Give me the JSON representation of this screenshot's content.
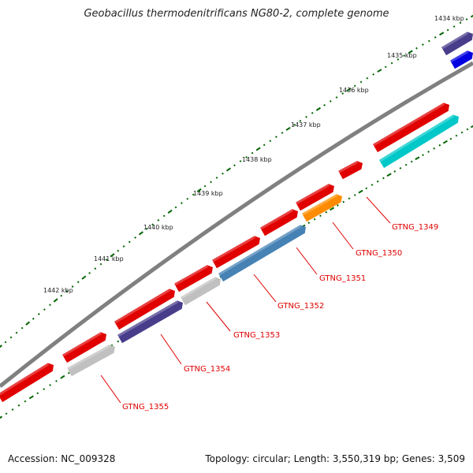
{
  "title": "Geobacillus thermodenitrificans NG80-2, complete genome",
  "footer": {
    "accession": "Accession: NC_009328",
    "summary": "Topology: circular; Length: 3,550,319 bp; Genes: 3,509"
  },
  "scale": {
    "unit": "kbp",
    "ticks": [
      "1434 kbp",
      "1435 kbp",
      "1436 kbp",
      "1437 kbp",
      "1438 kbp",
      "1439 kbp",
      "1440 kbp",
      "1441 kbp",
      "1442 kbp"
    ]
  },
  "genes": [
    {
      "name": "GTNG_1349",
      "color": "#e00000"
    },
    {
      "name": "GTNG_1350",
      "color": "#ff8c00"
    },
    {
      "name": "GTNG_1351",
      "color": "#e00000"
    },
    {
      "name": "GTNG_1352",
      "color": "#4682b4"
    },
    {
      "name": "GTNG_1353",
      "color": "#c0c0c0"
    },
    {
      "name": "GTNG_1354",
      "color": "#483d8b"
    },
    {
      "name": "GTNG_1355",
      "color": "#c0c0c0"
    }
  ],
  "colors": {
    "forward_strand": "#e00000",
    "backbone": "#808080",
    "tick": "#006400",
    "label_line": "#e00000",
    "cyan_feature": "#00c8c8",
    "blue_feature": "#0000e0",
    "navy_feature": "#483d8b"
  }
}
